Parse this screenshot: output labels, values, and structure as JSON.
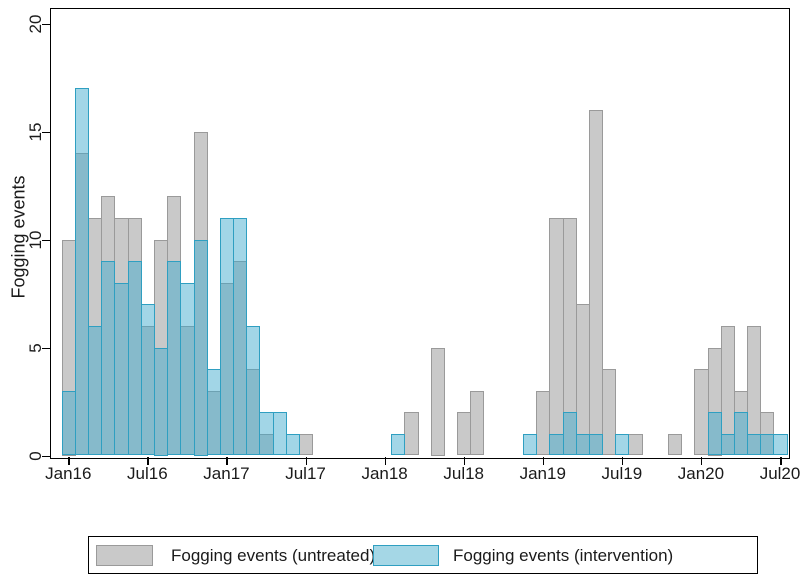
{
  "y_axis": {
    "title": "Fogging events",
    "tick_values": [
      0,
      5,
      10,
      15,
      20
    ]
  },
  "x_axis": {
    "ticks": [
      {
        "label": "Jan16",
        "month_index": 0
      },
      {
        "label": "Jul16",
        "month_index": 6
      },
      {
        "label": "Jan17",
        "month_index": 12
      },
      {
        "label": "Jul17",
        "month_index": 18
      },
      {
        "label": "Jan18",
        "month_index": 24
      },
      {
        "label": "Jul18",
        "month_index": 30
      },
      {
        "label": "Jan19",
        "month_index": 36
      },
      {
        "label": "Jul19",
        "month_index": 42
      },
      {
        "label": "Jan20",
        "month_index": 48
      },
      {
        "label": "Jul20",
        "month_index": 54
      }
    ]
  },
  "legend": {
    "untreated_label": "Fogging events (untreated)",
    "intervention_label": "Fogging events (intervention)"
  },
  "colors": {
    "untreated_fill": "#c9c9c9",
    "untreated_border": "#9a9a9a",
    "intervention_fill_only": "#a5d7e6",
    "intervention_overlap": "#7db9c9",
    "intervention_border": "#2f9fc1",
    "frame": "#000000"
  },
  "chart_data": {
    "type": "bar",
    "title": "",
    "xlabel": "",
    "ylabel": "Fogging events",
    "ylim": [
      0,
      20.7
    ],
    "grid": false,
    "legend_position": "bottom",
    "x_tick_labels": [
      "Jan16",
      "Jul16",
      "Jan17",
      "Jul17",
      "Jan18",
      "Jul18",
      "Jan19",
      "Jul19",
      "Jan20",
      "Jul20"
    ],
    "series_names": [
      "Fogging events (untreated)",
      "Fogging events (intervention)"
    ],
    "note": "Overlaid (not stacked) monthly bars; month_index counts months from Jan 2016 = 0. Months absent from the list have zero events in both series.",
    "bars": [
      {
        "month": "Jan16",
        "month_index": 0,
        "untreated": 10,
        "intervention": 3
      },
      {
        "month": "Feb16",
        "month_index": 1,
        "untreated": 14,
        "intervention": 17
      },
      {
        "month": "Mar16",
        "month_index": 2,
        "untreated": 11,
        "intervention": 6
      },
      {
        "month": "Apr16",
        "month_index": 3,
        "untreated": 12,
        "intervention": 9
      },
      {
        "month": "May16",
        "month_index": 4,
        "untreated": 11,
        "intervention": 8
      },
      {
        "month": "Jun16",
        "month_index": 5,
        "untreated": 11,
        "intervention": 9
      },
      {
        "month": "Jul16",
        "month_index": 6,
        "untreated": 6,
        "intervention": 7
      },
      {
        "month": "Aug16",
        "month_index": 7,
        "untreated": 10,
        "intervention": 5
      },
      {
        "month": "Sep16",
        "month_index": 8,
        "untreated": 12,
        "intervention": 9
      },
      {
        "month": "Oct16",
        "month_index": 9,
        "untreated": 6,
        "intervention": 8
      },
      {
        "month": "Nov16",
        "month_index": 10,
        "untreated": 15,
        "intervention": 10
      },
      {
        "month": "Dec16",
        "month_index": 11,
        "untreated": 3,
        "intervention": 4
      },
      {
        "month": "Jan17",
        "month_index": 12,
        "untreated": 8,
        "intervention": 11
      },
      {
        "month": "Feb17",
        "month_index": 13,
        "untreated": 9,
        "intervention": 11
      },
      {
        "month": "Mar17",
        "month_index": 14,
        "untreated": 4,
        "intervention": 6
      },
      {
        "month": "Apr17",
        "month_index": 15,
        "untreated": 1,
        "intervention": 2
      },
      {
        "month": "May17",
        "month_index": 16,
        "untreated": 0,
        "intervention": 2
      },
      {
        "month": "Jun17",
        "month_index": 17,
        "untreated": 0,
        "intervention": 1
      },
      {
        "month": "Jul17",
        "month_index": 18,
        "untreated": 1,
        "intervention": 0
      },
      {
        "month": "Feb18",
        "month_index": 25,
        "untreated": 0,
        "intervention": 1
      },
      {
        "month": "Mar18",
        "month_index": 26,
        "untreated": 2,
        "intervention": 0
      },
      {
        "month": "May18",
        "month_index": 28,
        "untreated": 5,
        "intervention": 0
      },
      {
        "month": "Jul18",
        "month_index": 30,
        "untreated": 2,
        "intervention": 0
      },
      {
        "month": "Aug18",
        "month_index": 31,
        "untreated": 3,
        "intervention": 0
      },
      {
        "month": "Dec18",
        "month_index": 35,
        "untreated": 0,
        "intervention": 1
      },
      {
        "month": "Jan19",
        "month_index": 36,
        "untreated": 3,
        "intervention": 0
      },
      {
        "month": "Feb19",
        "month_index": 37,
        "untreated": 11,
        "intervention": 1
      },
      {
        "month": "Mar19",
        "month_index": 38,
        "untreated": 11,
        "intervention": 2
      },
      {
        "month": "Apr19",
        "month_index": 39,
        "untreated": 7,
        "intervention": 1
      },
      {
        "month": "May19",
        "month_index": 40,
        "untreated": 16,
        "intervention": 1
      },
      {
        "month": "Jun19",
        "month_index": 41,
        "untreated": 4,
        "intervention": 0
      },
      {
        "month": "Jul19",
        "month_index": 42,
        "untreated": 0,
        "intervention": 1
      },
      {
        "month": "Aug19",
        "month_index": 43,
        "untreated": 1,
        "intervention": 0
      },
      {
        "month": "Nov19",
        "month_index": 46,
        "untreated": 1,
        "intervention": 0
      },
      {
        "month": "Jan20",
        "month_index": 48,
        "untreated": 4,
        "intervention": 0
      },
      {
        "month": "Feb20",
        "month_index": 49,
        "untreated": 5,
        "intervention": 2
      },
      {
        "month": "Mar20",
        "month_index": 50,
        "untreated": 6,
        "intervention": 1
      },
      {
        "month": "Apr20",
        "month_index": 51,
        "untreated": 3,
        "intervention": 2
      },
      {
        "month": "May20",
        "month_index": 52,
        "untreated": 6,
        "intervention": 1
      },
      {
        "month": "Jun20",
        "month_index": 53,
        "untreated": 2,
        "intervention": 1
      },
      {
        "month": "Jul20",
        "month_index": 54,
        "untreated": 0,
        "intervention": 1
      }
    ]
  }
}
